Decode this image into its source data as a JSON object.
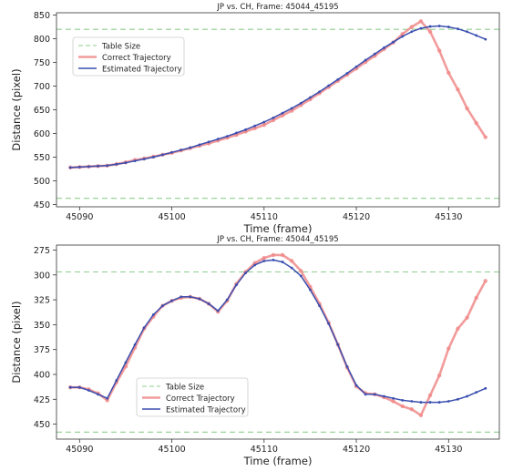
{
  "chart_data": [
    {
      "type": "line",
      "title": "JP vs. CH, Frame: 45044_45195",
      "xlabel": "Time (frame)",
      "ylabel": "Distance (pixel)",
      "xlim": [
        45087.5,
        45135.5
      ],
      "ylim": [
        445,
        855
      ],
      "y_inverted": false,
      "xticks": [
        45090,
        45100,
        45110,
        45120,
        45130
      ],
      "yticks": [
        450,
        500,
        550,
        600,
        650,
        700,
        750,
        800,
        850
      ],
      "grid": false,
      "legend_position": "upper-left",
      "table_size_lines": [
        820,
        463
      ],
      "series": [
        {
          "name": "Table Size",
          "color": "#8fcf8f",
          "style": "dashed"
        },
        {
          "name": "Correct Trajectory",
          "color": "#f08a8a",
          "style": "solid-markers",
          "x": [
            45089,
            45090,
            45091,
            45092,
            45093,
            45094,
            45095,
            45096,
            45097,
            45098,
            45099,
            45100,
            45101,
            45102,
            45103,
            45104,
            45105,
            45106,
            45107,
            45108,
            45109,
            45110,
            45111,
            45112,
            45113,
            45114,
            45115,
            45116,
            45117,
            45118,
            45119,
            45120,
            45121,
            45122,
            45123,
            45124,
            45125,
            45126,
            45127,
            45128,
            45129,
            45130,
            45131,
            45132,
            45133,
            45134
          ],
          "y": [
            528,
            529,
            530,
            531,
            532,
            535,
            539,
            544,
            547,
            551,
            555,
            559,
            564,
            569,
            574,
            579,
            585,
            591,
            597,
            604,
            611,
            618,
            628,
            638,
            648,
            660,
            672,
            685,
            698,
            711,
            724,
            737,
            751,
            764,
            778,
            792,
            810,
            825,
            837,
            815,
            775,
            728,
            693,
            653,
            622,
            592
          ]
        },
        {
          "name": "Estimated Trajectory",
          "color": "#3b4fb0",
          "style": "solid-markers",
          "x": [
            45089,
            45090,
            45091,
            45092,
            45093,
            45094,
            45095,
            45096,
            45097,
            45098,
            45099,
            45100,
            45101,
            45102,
            45103,
            45104,
            45105,
            45106,
            45107,
            45108,
            45109,
            45110,
            45111,
            45112,
            45113,
            45114,
            45115,
            45116,
            45117,
            45118,
            45119,
            45120,
            45121,
            45122,
            45123,
            45124,
            45125,
            45126,
            45127,
            45128,
            45129,
            45130,
            45131,
            45132,
            45133,
            45134
          ],
          "y": [
            528,
            529,
            530,
            531,
            532,
            535,
            538,
            542,
            546,
            550,
            555,
            560,
            565,
            570,
            576,
            582,
            588,
            594,
            601,
            608,
            616,
            624,
            633,
            643,
            653,
            664,
            676,
            688,
            701,
            714,
            727,
            741,
            755,
            768,
            781,
            793,
            805,
            815,
            822,
            826,
            827,
            825,
            821,
            815,
            807,
            799
          ]
        }
      ]
    },
    {
      "type": "line",
      "title": "JP vs. CH, Frame: 45044_45195",
      "xlabel": "Time (frame)",
      "ylabel": "Distance (pixel)",
      "xlim": [
        45087.5,
        45135.5
      ],
      "ylim": [
        465,
        270
      ],
      "y_inverted": true,
      "xticks": [
        45090,
        45100,
        45110,
        45120,
        45130
      ],
      "yticks": [
        275,
        300,
        325,
        350,
        375,
        400,
        425,
        450
      ],
      "grid": false,
      "legend_position": "lower-left",
      "table_size_lines": [
        297,
        458
      ],
      "series": [
        {
          "name": "Table Size",
          "color": "#8fcf8f",
          "style": "dashed"
        },
        {
          "name": "Correct Trajectory",
          "color": "#f08a8a",
          "style": "solid-markers",
          "x": [
            45089,
            45090,
            45091,
            45092,
            45093,
            45094,
            45095,
            45096,
            45097,
            45098,
            45099,
            45100,
            45101,
            45102,
            45103,
            45104,
            45105,
            45106,
            45107,
            45108,
            45109,
            45110,
            45111,
            45112,
            45113,
            45114,
            45115,
            45116,
            45117,
            45118,
            45119,
            45120,
            45121,
            45122,
            45123,
            45124,
            45125,
            45126,
            45127,
            45128,
            45129,
            45130,
            45131,
            45132,
            45133,
            45134
          ],
          "y": [
            413,
            413,
            415,
            419,
            426,
            408,
            392,
            373,
            354,
            342,
            331,
            326,
            323,
            322,
            324,
            329,
            337,
            326,
            309,
            297,
            288,
            283,
            280,
            280,
            286,
            296,
            312,
            329,
            348,
            370,
            393,
            412,
            419,
            420,
            423,
            427,
            432,
            435,
            441,
            421,
            401,
            374,
            354,
            343,
            323,
            306
          ]
        },
        {
          "name": "Estimated Trajectory",
          "color": "#3b4fb0",
          "style": "solid-markers",
          "x": [
            45089,
            45090,
            45091,
            45092,
            45093,
            45094,
            45095,
            45096,
            45097,
            45098,
            45099,
            45100,
            45101,
            45102,
            45103,
            45104,
            45105,
            45106,
            45107,
            45108,
            45109,
            45110,
            45111,
            45112,
            45113,
            45114,
            45115,
            45116,
            45117,
            45118,
            45119,
            45120,
            45121,
            45122,
            45123,
            45124,
            45125,
            45126,
            45127,
            45128,
            45129,
            45130,
            45131,
            45132,
            45133,
            45134
          ],
          "y": [
            413,
            413,
            416,
            420,
            424,
            406,
            388,
            370,
            353,
            340,
            331,
            326,
            322,
            322,
            324,
            329,
            336,
            325,
            310,
            298,
            290,
            286,
            285,
            287,
            293,
            301,
            315,
            331,
            349,
            370,
            392,
            411,
            420,
            420,
            422,
            424,
            426,
            427,
            428,
            428,
            428,
            427,
            425,
            422,
            418,
            414
          ]
        }
      ]
    }
  ]
}
